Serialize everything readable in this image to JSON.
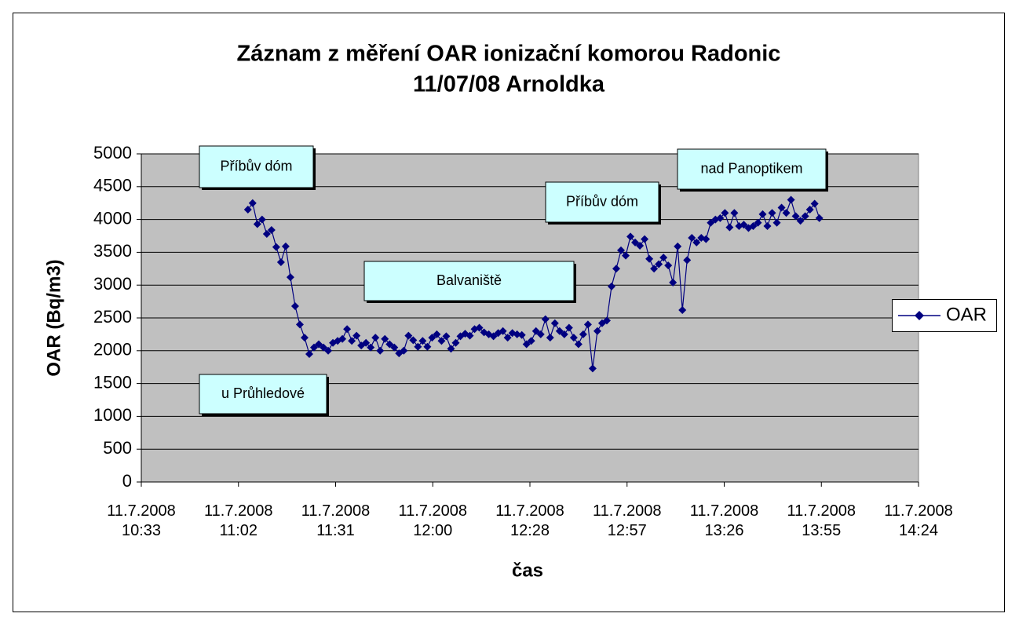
{
  "chart_data": {
    "type": "line",
    "title": "Záznam z měření OAR ionizační komorou Radonic",
    "subtitle": "11/07/08 Arnoldka",
    "x_label": "čas",
    "y_label": "OAR (Bq/m3)",
    "annotations": [
      "Příbův dóm",
      "Balvaniště",
      "u Průhledové",
      "Příbův dóm",
      "nad Panoptikem"
    ],
    "x": [
      665.2,
      666.6,
      668,
      669.4,
      670.8,
      672.2,
      673.6,
      675,
      676.4,
      677.8,
      679.2,
      680.6,
      682,
      683.4,
      684.8,
      686.2,
      687.6,
      689,
      690.4,
      691.8,
      693.2,
      694.6,
      696,
      697.4,
      698.8,
      700.2,
      701.6,
      703,
      704.4,
      705.8,
      707.2,
      708.6,
      710,
      711.4,
      712.8,
      714.2,
      715.6,
      717,
      718.4,
      719.8,
      721.2,
      722.6,
      724,
      725.4,
      726.8,
      728.2,
      729.6,
      731,
      732.4,
      733.8,
      735.2,
      736.6,
      738,
      739.4,
      740.8,
      742.2,
      743.6,
      745,
      746.4,
      747.8,
      749.2,
      750.6,
      752,
      753.4,
      754.8,
      756.2,
      757.6,
      759,
      760.4,
      761.8,
      763.2,
      764.6,
      766,
      767.4,
      768.8,
      770.2,
      771.6,
      773,
      774.4,
      775.8,
      777.2,
      778.6,
      780,
      781.4,
      782.8,
      784.2,
      785.6,
      787,
      788.4,
      789.8,
      791.2,
      792.6,
      794,
      795.4,
      796.8,
      798.2,
      799.6,
      801,
      802.4,
      803.8,
      805.2,
      806.6,
      808,
      809.4,
      810.8,
      812.2,
      813.6,
      815,
      816.4,
      817.8,
      819.2,
      820.6,
      822,
      823.4,
      824.8,
      826.2,
      827.6,
      829,
      830.4,
      831.8,
      833.2,
      834.6
    ],
    "series": [
      {
        "name": "OAR",
        "color": "#000080",
        "values": [
          4150,
          4250,
          3930,
          4000,
          3780,
          3840,
          3580,
          3350,
          3590,
          3120,
          2680,
          2400,
          2200,
          1950,
          2050,
          2100,
          2050,
          2000,
          2120,
          2150,
          2180,
          2330,
          2150,
          2230,
          2080,
          2120,
          2050,
          2200,
          2000,
          2180,
          2100,
          2050,
          1960,
          2000,
          2230,
          2160,
          2060,
          2150,
          2060,
          2200,
          2250,
          2150,
          2220,
          2030,
          2120,
          2220,
          2260,
          2230,
          2330,
          2350,
          2280,
          2250,
          2220,
          2270,
          2300,
          2200,
          2270,
          2250,
          2240,
          2100,
          2150,
          2300,
          2250,
          2480,
          2200,
          2420,
          2300,
          2250,
          2350,
          2200,
          2100,
          2250,
          2400,
          1730,
          2300,
          2420,
          2460,
          2980,
          3250,
          3530,
          3450,
          3740,
          3650,
          3600,
          3700,
          3400,
          3250,
          3320,
          3420,
          3300,
          3040,
          3590,
          2620,
          3380,
          3720,
          3650,
          3720,
          3700,
          3950,
          4000,
          4020,
          4100,
          3880,
          4100,
          3900,
          3920,
          3870,
          3900,
          3950,
          4080,
          3900,
          4100,
          3950,
          4180,
          4100,
          4300,
          4050,
          3980,
          4050,
          4150,
          4240,
          4020
        ]
      }
    ],
    "xlim": [
      633.6,
      864
    ],
    "xticks": [
      {
        "value": 633.6,
        "label": "11.7.2008\n10:33"
      },
      {
        "value": 662.4,
        "label": "11.7.2008\n11:02"
      },
      {
        "value": 691.2,
        "label": "11.7.2008\n11:31"
      },
      {
        "value": 720,
        "label": "11.7.2008\n12:00"
      },
      {
        "value": 748.8,
        "label": "11.7.2008\n12:28"
      },
      {
        "value": 777.6,
        "label": "11.7.2008\n12:57"
      },
      {
        "value": 806.4,
        "label": "11.7.2008\n13:26"
      },
      {
        "value": 835.2,
        "label": "11.7.2008\n13:55"
      },
      {
        "value": 864,
        "label": "11.7.2008\n14:24"
      }
    ],
    "ylim": [
      0,
      5000
    ],
    "yticks": [
      0,
      500,
      1000,
      1500,
      2000,
      2500,
      3000,
      3500,
      4000,
      4500,
      5000
    ],
    "grid": true,
    "legend": "right"
  }
}
